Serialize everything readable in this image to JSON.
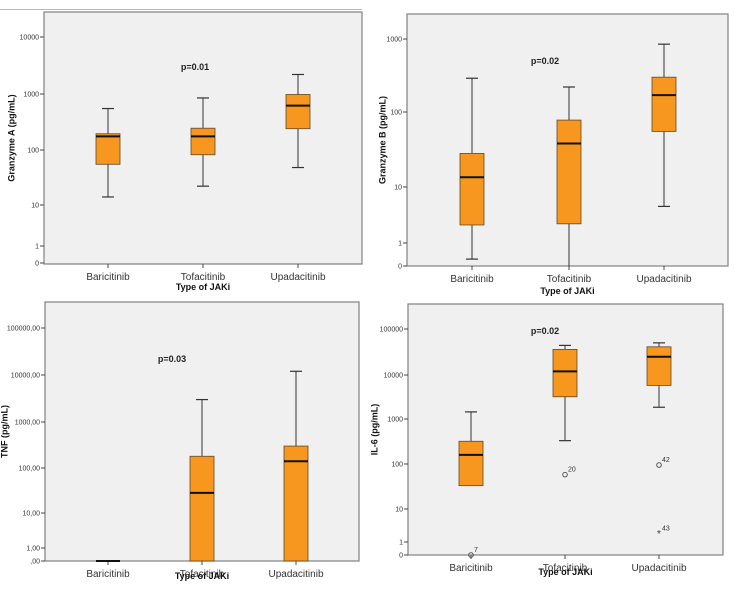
{
  "chart_data": [
    {
      "type": "boxplot",
      "title": "",
      "xlabel": "Type of JAKi",
      "ylabel": "Granzyme A (pg/mL)",
      "yscale": "log",
      "yticks": [
        "0",
        "1",
        "10",
        "100",
        "1000",
        "10000"
      ],
      "ytick_values": [
        0,
        1,
        10,
        100,
        1000,
        10000
      ],
      "annotation": "p=0.01",
      "categories": [
        "Baricitinib",
        "Tofacitinib",
        "Upadacitinib"
      ],
      "boxes": [
        {
          "min": 14,
          "q1": 55,
          "median": 175,
          "q3": 195,
          "max": 550,
          "outliers": []
        },
        {
          "min": 22,
          "q1": 82,
          "median": 175,
          "q3": 245,
          "max": 850,
          "outliers": []
        },
        {
          "min": 48,
          "q1": 240,
          "median": 620,
          "q3": 980,
          "max": 2200,
          "outliers": []
        }
      ]
    },
    {
      "type": "boxplot",
      "title": "",
      "xlabel": "Type of JAKi",
      "ylabel": "Granzyme B (pg/mL)",
      "yscale": "log",
      "yticks": [
        "0",
        "1",
        "10",
        "100",
        "1000"
      ],
      "ytick_values": [
        0,
        1,
        10,
        100,
        1000
      ],
      "annotation": "p=0.02",
      "categories": [
        "Baricitinib",
        "Tofacitinib",
        "Upadacitinib"
      ],
      "boxes": [
        {
          "min": 0.3,
          "q1": 2.1,
          "median": 13.5,
          "q3": 28,
          "max": 290,
          "outliers": []
        },
        {
          "min": 0,
          "q1": 2.2,
          "median": 38,
          "q3": 78,
          "max": 220,
          "outliers": []
        },
        {
          "min": 4.5,
          "q1": 55,
          "median": 170,
          "q3": 300,
          "max": 850,
          "outliers": []
        }
      ]
    },
    {
      "type": "boxplot",
      "title": "",
      "xlabel": "Type of JAKi",
      "ylabel": "TNF (pg/mL)",
      "yscale": "log",
      "yticks": [
        ",00",
        "1,00",
        "10,00",
        "100,00",
        "1000,00",
        "10000,00",
        "100000,00"
      ],
      "ytick_values": [
        0,
        1,
        10,
        100,
        1000,
        10000,
        100000
      ],
      "annotation": "p=0.03",
      "categories": [
        "Baricitinib",
        "Tofacitinib",
        "Upadacitinib"
      ],
      "boxes": [
        {
          "min": 0,
          "q1": 0,
          "median": 0,
          "q3": 0,
          "max": 0,
          "outliers": []
        },
        {
          "min": 0,
          "q1": 0,
          "median": 28,
          "q3": 180,
          "max": 3000,
          "outliers": []
        },
        {
          "min": 0,
          "q1": 0,
          "median": 140,
          "q3": 300,
          "max": 12000,
          "outliers": []
        }
      ]
    },
    {
      "type": "boxplot",
      "title": "",
      "xlabel": "Type of JAKi",
      "ylabel": "IL-6 (pg/mL)",
      "yscale": "log",
      "yticks": [
        "0",
        "1",
        "10",
        "100",
        "1000",
        "10000",
        "100000"
      ],
      "ytick_values": [
        0,
        1,
        10,
        100,
        1000,
        10000,
        100000
      ],
      "annotation": "p=0.02",
      "categories": [
        "Baricitinib",
        "Tofacitinib",
        "Upadacitinib"
      ],
      "boxes": [
        {
          "min": 33,
          "q1": 33,
          "median": 160,
          "q3": 320,
          "max": 1450,
          "outliers": [
            {
              "value": 0,
              "label": "7",
              "marker": "circle"
            }
          ]
        },
        {
          "min": 330,
          "q1": 3200,
          "median": 12000,
          "q3": 36000,
          "max": 44000,
          "outliers": [
            {
              "value": 58,
              "label": "20",
              "marker": "circle"
            }
          ]
        },
        {
          "min": 1850,
          "q1": 5800,
          "median": 25000,
          "q3": 41000,
          "max": 50000,
          "outliers": [
            {
              "value": 95,
              "label": "42",
              "marker": "circle"
            },
            {
              "value": 1.8,
              "label": "43",
              "marker": "star"
            }
          ]
        }
      ]
    }
  ]
}
